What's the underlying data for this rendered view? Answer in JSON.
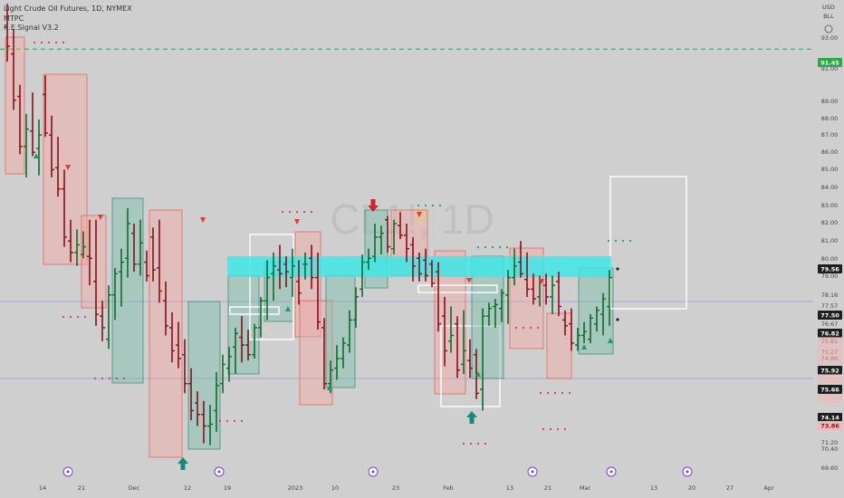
{
  "header": {
    "symbol_title": "Light Crude Oil Futures, 1D, NYMEX",
    "indicator_1": "MTPC",
    "indicator_2": "R.E.Signal V3.2"
  },
  "axis": {
    "currency": "USD",
    "unit": "BLL",
    "price_ticks": [
      "93.00",
      "91.00",
      "89.00",
      "88.00",
      "87.00",
      "86.00",
      "85.00",
      "84.00",
      "83.00",
      "82.00",
      "81.00",
      "80.00",
      "79.00",
      "78.16",
      "77.57",
      "77.08",
      "76.67",
      "76.26",
      "75.81",
      "75.27",
      "74.86",
      "71.20",
      "70.40",
      "69.60"
    ],
    "time_ticks": [
      "14",
      "21",
      "Dec",
      "12",
      "19",
      "2023",
      "10",
      "23",
      "Feb",
      "13",
      "21",
      "Mar",
      "13",
      "20",
      "27",
      "Apr"
    ]
  },
  "price_badges": [
    {
      "value": "91.45",
      "color": "#2aa84a"
    },
    {
      "value": "79.56",
      "color": "#1e1e1e"
    },
    {
      "value": "77.50",
      "color": "#1e1e1e"
    },
    {
      "value": "76.82",
      "color": "#1e1e1e"
    },
    {
      "value": "75.92",
      "color": "#1e1e1e"
    },
    {
      "value": "75.66",
      "color": "#1e1e1e"
    },
    {
      "value": "74.14",
      "color": "#1e1e1e"
    },
    {
      "value": "73.86",
      "color": "#f4b6b6"
    }
  ],
  "watermark": "CL1!, 1D",
  "colors": {
    "bull": "#0d6b2b",
    "bear": "#8b0d16",
    "cyan": "#3fe6e6",
    "green_box": "#9cc9bd",
    "red_box": "#f2a9a4",
    "reference_line": "#2aa84a"
  },
  "chart_data": {
    "type": "ohlc",
    "title": "Light Crude Oil Futures, 1D, NYMEX",
    "ylim": [
      69.2,
      94.0
    ],
    "reference_level": 91.45,
    "candles": [
      {
        "x": 0,
        "o": 92.6,
        "h": 93.8,
        "l": 90.8,
        "c": 91.6
      },
      {
        "x": 1,
        "o": 91.2,
        "h": 92.5,
        "l": 88.3,
        "c": 88.8
      },
      {
        "x": 2,
        "o": 89.0,
        "h": 89.6,
        "l": 86.0,
        "c": 86.4
      },
      {
        "x": 3,
        "o": 86.4,
        "h": 88.1,
        "l": 84.8,
        "c": 87.3
      },
      {
        "x": 4,
        "o": 87.2,
        "h": 89.2,
        "l": 85.9,
        "c": 86.1
      },
      {
        "x": 5,
        "o": 86.3,
        "h": 87.8,
        "l": 84.9,
        "c": 87.0
      },
      {
        "x": 6,
        "o": 89.1,
        "h": 90.1,
        "l": 86.9,
        "c": 87.1
      },
      {
        "x": 7,
        "o": 87.0,
        "h": 88.0,
        "l": 84.8,
        "c": 85.2
      },
      {
        "x": 8,
        "o": 85.3,
        "h": 86.9,
        "l": 83.8,
        "c": 84.2
      },
      {
        "x": 9,
        "o": 84.2,
        "h": 85.2,
        "l": 81.2,
        "c": 81.7
      },
      {
        "x": 10,
        "o": 81.5,
        "h": 82.6,
        "l": 80.4,
        "c": 80.9
      },
      {
        "x": 11,
        "o": 80.9,
        "h": 82.1,
        "l": 80.2,
        "c": 81.3
      },
      {
        "x": 12,
        "o": 80.8,
        "h": 82.0,
        "l": 80.6,
        "c": 81.2
      },
      {
        "x": 13,
        "o": 80.7,
        "h": 82.6,
        "l": 79.2,
        "c": 80.6
      },
      {
        "x": 14,
        "o": 79.4,
        "h": 82.6,
        "l": 77.1,
        "c": 77.7
      },
      {
        "x": 15,
        "o": 77.6,
        "h": 78.4,
        "l": 76.3,
        "c": 77.0
      },
      {
        "x": 16,
        "o": 76.4,
        "h": 79.2,
        "l": 75.9,
        "c": 78.7
      },
      {
        "x": 17,
        "o": 78.7,
        "h": 80.1,
        "l": 77.4,
        "c": 79.8
      },
      {
        "x": 18,
        "o": 79.9,
        "h": 81.1,
        "l": 78.1,
        "c": 80.4
      },
      {
        "x": 19,
        "o": 80.6,
        "h": 83.2,
        "l": 79.6,
        "c": 82.4
      },
      {
        "x": 20,
        "o": 81.9,
        "h": 82.4,
        "l": 79.9,
        "c": 80.3
      },
      {
        "x": 21,
        "o": 80.3,
        "h": 82.6,
        "l": 79.7,
        "c": 81.4
      },
      {
        "x": 22,
        "o": 80.4,
        "h": 81.0,
        "l": 79.4,
        "c": 79.7
      },
      {
        "x": 23,
        "o": 81.7,
        "h": 82.2,
        "l": 79.4,
        "c": 80.0
      },
      {
        "x": 24,
        "o": 80.1,
        "h": 82.6,
        "l": 78.3,
        "c": 78.9
      },
      {
        "x": 25,
        "o": 78.4,
        "h": 79.4,
        "l": 76.6,
        "c": 77.1
      },
      {
        "x": 26,
        "o": 77.0,
        "h": 77.8,
        "l": 75.2,
        "c": 75.8
      },
      {
        "x": 27,
        "o": 76.1,
        "h": 77.3,
        "l": 74.9,
        "c": 75.4
      },
      {
        "x": 28,
        "o": 75.6,
        "h": 76.4,
        "l": 73.6,
        "c": 74.1
      },
      {
        "x": 29,
        "o": 74.1,
        "h": 74.9,
        "l": 72.2,
        "c": 72.7
      },
      {
        "x": 30,
        "o": 73.1,
        "h": 73.7,
        "l": 71.9,
        "c": 72.5
      },
      {
        "x": 31,
        "o": 72.5,
        "h": 73.2,
        "l": 71.0,
        "c": 71.9
      },
      {
        "x": 32,
        "o": 71.9,
        "h": 73.0,
        "l": 70.9,
        "c": 72.0
      },
      {
        "x": 33,
        "o": 72.7,
        "h": 74.7,
        "l": 71.6,
        "c": 74.0
      },
      {
        "x": 34,
        "o": 74.1,
        "h": 75.6,
        "l": 73.6,
        "c": 75.1
      },
      {
        "x": 35,
        "o": 74.9,
        "h": 76.0,
        "l": 74.2,
        "c": 75.5
      },
      {
        "x": 36,
        "o": 76.0,
        "h": 77.0,
        "l": 74.6,
        "c": 76.7
      },
      {
        "x": 37,
        "o": 76.5,
        "h": 77.6,
        "l": 75.2,
        "c": 76.1
      },
      {
        "x": 38,
        "o": 76.1,
        "h": 76.9,
        "l": 75.3,
        "c": 75.6
      },
      {
        "x": 39,
        "o": 75.6,
        "h": 77.2,
        "l": 75.4,
        "c": 77.0
      },
      {
        "x": 40,
        "o": 77.0,
        "h": 78.6,
        "l": 76.5,
        "c": 78.4
      },
      {
        "x": 41,
        "o": 78.4,
        "h": 80.5,
        "l": 77.4,
        "c": 79.6
      },
      {
        "x": 42,
        "o": 79.8,
        "h": 80.9,
        "l": 78.4,
        "c": 80.2
      },
      {
        "x": 43,
        "o": 80.0,
        "h": 81.3,
        "l": 79.0,
        "c": 79.8
      },
      {
        "x": 44,
        "o": 80.3,
        "h": 80.7,
        "l": 79.1,
        "c": 79.9
      },
      {
        "x": 45,
        "o": 79.6,
        "h": 81.1,
        "l": 78.6,
        "c": 80.2
      },
      {
        "x": 46,
        "o": 79.4,
        "h": 80.5,
        "l": 78.2,
        "c": 78.8
      },
      {
        "x": 47,
        "o": 80.3,
        "h": 80.9,
        "l": 79.5,
        "c": 80.3
      },
      {
        "x": 48,
        "o": 80.6,
        "h": 81.3,
        "l": 79.0,
        "c": 79.6
      },
      {
        "x": 49,
        "o": 79.6,
        "h": 80.9,
        "l": 76.9,
        "c": 77.3
      },
      {
        "x": 50,
        "o": 77.0,
        "h": 77.5,
        "l": 73.8,
        "c": 74.1
      },
      {
        "x": 51,
        "o": 74.1,
        "h": 75.3,
        "l": 73.6,
        "c": 74.8
      },
      {
        "x": 52,
        "o": 74.9,
        "h": 76.1,
        "l": 74.3,
        "c": 75.4
      },
      {
        "x": 53,
        "o": 75.4,
        "h": 76.5,
        "l": 74.9,
        "c": 76.2
      },
      {
        "x": 54,
        "o": 76.1,
        "h": 77.9,
        "l": 75.7,
        "c": 77.4
      },
      {
        "x": 55,
        "o": 77.4,
        "h": 79.1,
        "l": 77.0,
        "c": 78.6
      },
      {
        "x": 56,
        "o": 79.0,
        "h": 80.8,
        "l": 78.6,
        "c": 80.4
      },
      {
        "x": 57,
        "o": 80.4,
        "h": 81.1,
        "l": 80.0,
        "c": 80.6
      },
      {
        "x": 58,
        "o": 80.7,
        "h": 82.4,
        "l": 80.4,
        "c": 81.7
      },
      {
        "x": 59,
        "o": 81.7,
        "h": 82.3,
        "l": 80.8,
        "c": 81.9
      },
      {
        "x": 60,
        "o": 82.6,
        "h": 82.8,
        "l": 80.9,
        "c": 81.2
      },
      {
        "x": 61,
        "o": 81.1,
        "h": 82.6,
        "l": 80.8,
        "c": 82.4
      },
      {
        "x": 62,
        "o": 82.3,
        "h": 83.0,
        "l": 81.6,
        "c": 81.8
      },
      {
        "x": 63,
        "o": 81.8,
        "h": 82.4,
        "l": 80.4,
        "c": 81.1
      },
      {
        "x": 64,
        "o": 81.3,
        "h": 81.7,
        "l": 79.4,
        "c": 80.2
      },
      {
        "x": 65,
        "o": 80.6,
        "h": 80.9,
        "l": 79.4,
        "c": 79.8
      },
      {
        "x": 66,
        "o": 80.5,
        "h": 81.1,
        "l": 79.4,
        "c": 79.7
      },
      {
        "x": 67,
        "o": 80.3,
        "h": 80.5,
        "l": 79.1,
        "c": 79.3
      },
      {
        "x": 68,
        "o": 79.9,
        "h": 80.4,
        "l": 76.8,
        "c": 77.2
      },
      {
        "x": 69,
        "o": 77.6,
        "h": 78.6,
        "l": 75.0,
        "c": 75.8
      },
      {
        "x": 70,
        "o": 76.3,
        "h": 78.1,
        "l": 75.7,
        "c": 76.6
      },
      {
        "x": 71,
        "o": 77.2,
        "h": 77.6,
        "l": 74.4,
        "c": 74.8
      },
      {
        "x": 72,
        "o": 75.1,
        "h": 77.9,
        "l": 74.6,
        "c": 75.8
      },
      {
        "x": 73,
        "o": 75.3,
        "h": 76.4,
        "l": 74.4,
        "c": 74.9
      },
      {
        "x": 74,
        "o": 75.6,
        "h": 75.9,
        "l": 73.3,
        "c": 73.6
      },
      {
        "x": 75,
        "o": 73.8,
        "h": 78.0,
        "l": 72.7,
        "c": 77.6
      },
      {
        "x": 76,
        "o": 77.6,
        "h": 78.3,
        "l": 77.1,
        "c": 78.0
      },
      {
        "x": 77,
        "o": 78.1,
        "h": 78.5,
        "l": 77.0,
        "c": 78.2
      },
      {
        "x": 78,
        "o": 78.0,
        "h": 79.0,
        "l": 77.3,
        "c": 78.8
      },
      {
        "x": 79,
        "o": 78.7,
        "h": 80.0,
        "l": 77.2,
        "c": 79.6
      },
      {
        "x": 80,
        "o": 79.6,
        "h": 81.1,
        "l": 79.2,
        "c": 80.2
      },
      {
        "x": 81,
        "o": 80.4,
        "h": 81.5,
        "l": 79.6,
        "c": 79.8
      },
      {
        "x": 82,
        "o": 79.5,
        "h": 80.9,
        "l": 78.6,
        "c": 79.0
      },
      {
        "x": 83,
        "o": 79.0,
        "h": 79.8,
        "l": 78.2,
        "c": 78.5
      },
      {
        "x": 84,
        "o": 78.6,
        "h": 79.7,
        "l": 78.1,
        "c": 79.4
      },
      {
        "x": 85,
        "o": 79.2,
        "h": 79.8,
        "l": 78.2,
        "c": 78.6
      },
      {
        "x": 86,
        "o": 78.6,
        "h": 79.7,
        "l": 77.7,
        "c": 79.2
      },
      {
        "x": 87,
        "o": 79.4,
        "h": 79.9,
        "l": 77.6,
        "c": 78.1
      },
      {
        "x": 88,
        "o": 77.4,
        "h": 77.9,
        "l": 76.6,
        "c": 77.1
      },
      {
        "x": 89,
        "o": 77.2,
        "h": 78.0,
        "l": 75.8,
        "c": 76.2
      },
      {
        "x": 90,
        "o": 76.1,
        "h": 77.0,
        "l": 75.8,
        "c": 76.6
      },
      {
        "x": 91,
        "o": 76.6,
        "h": 77.3,
        "l": 76.2,
        "c": 76.8
      },
      {
        "x": 92,
        "o": 76.4,
        "h": 77.7,
        "l": 76.2,
        "c": 77.5
      },
      {
        "x": 93,
        "o": 77.2,
        "h": 78.1,
        "l": 76.8,
        "c": 77.9
      },
      {
        "x": 94,
        "o": 77.7,
        "h": 78.8,
        "l": 76.6,
        "c": 78.5
      },
      {
        "x": 95,
        "o": 78.1,
        "h": 80.0,
        "l": 77.1,
        "c": 79.6
      }
    ]
  }
}
